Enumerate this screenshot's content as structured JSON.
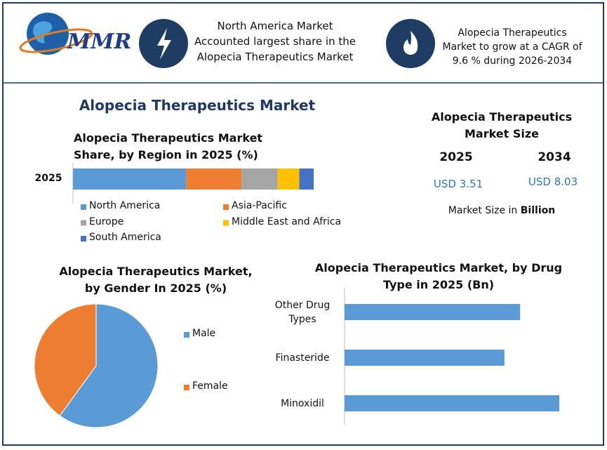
{
  "header": {
    "logo": "MMR",
    "info": [
      "North America Market Accounted largest share in the Alopecia Therapeutics Market",
      "Alopecia Therapeutics Market to grow at a CAGR of 9.6 % during 2026-2034"
    ]
  },
  "title": "Alopecia Therapeutics Market",
  "market_size": {
    "title": "Alopecia Therapeutics Market Size",
    "years": [
      {
        "year": "2025",
        "value": "USD 3.51"
      },
      {
        "year": "2034",
        "value": "USD 8.03"
      }
    ],
    "note": "Market Size in",
    "unit": "Billion"
  },
  "chart_data": [
    {
      "type": "stacked_bar",
      "title": "Alopecia Therapeutics Market Share, by Region in 2025 (%)",
      "categories": [
        "2025"
      ],
      "legend": "bottom",
      "series": [
        {
          "name": "North America",
          "color": "#5b9bd5",
          "values": [
            47
          ]
        },
        {
          "name": "Asia-Pacific",
          "color": "#ed7d31",
          "values": [
            23
          ]
        },
        {
          "name": "Europe",
          "color": "#a5a5a5",
          "values": [
            15
          ]
        },
        {
          "name": "Middle East and Africa",
          "color": "#ffc000",
          "values": [
            9
          ]
        },
        {
          "name": "South America",
          "color": "#4472c4",
          "values": [
            6
          ]
        }
      ]
    },
    {
      "type": "pie",
      "title": "Alopecia Therapeutics Market, by Gender In 2025 (%)",
      "categories": [
        "Male",
        "Female"
      ],
      "values": [
        60,
        40
      ],
      "colors": [
        "#5b9bd5",
        "#ed7d31"
      ],
      "legend": "right"
    },
    {
      "type": "bar",
      "orientation": "horizontal",
      "title": "Alopecia Therapeutics Market, by Drug Type in 2025 (Bn)",
      "categories": [
        "Other Drug Types",
        "Finasteride",
        "Minoxidil"
      ],
      "values": [
        1.12,
        1.02,
        1.37
      ],
      "color": "#5b9bd5"
    }
  ]
}
